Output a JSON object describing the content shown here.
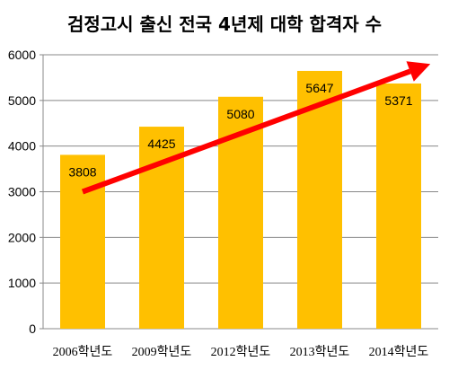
{
  "chart_data": {
    "type": "bar",
    "title": "검정고시 출신 전국 4년제 대학 합격자 수",
    "xlabel": "",
    "ylabel": "",
    "categories": [
      "2006학년도",
      "2009학년도",
      "2012학년도",
      "2013학년도",
      "2014학년도"
    ],
    "values": [
      3808,
      4425,
      5080,
      5647,
      5371
    ],
    "data_labels": [
      "3808",
      "4425",
      "5080",
      "5647",
      "5371"
    ],
    "ylim": [
      0,
      6000
    ],
    "y_ticks": [
      0,
      1000,
      2000,
      3000,
      4000,
      5000,
      6000
    ],
    "y_tick_labels": [
      "0",
      "1000",
      "2000",
      "3000",
      "4000",
      "5000",
      "6000"
    ],
    "grid": true,
    "legend": "none",
    "bar_color": "#FFC000",
    "grid_color": "#888888",
    "annotation": {
      "type": "trend-arrow",
      "color": "#FF0000",
      "from": {
        "category_index": 0,
        "y": 3000
      },
      "to": {
        "category_index": 4.4,
        "y": 5800
      }
    }
  }
}
